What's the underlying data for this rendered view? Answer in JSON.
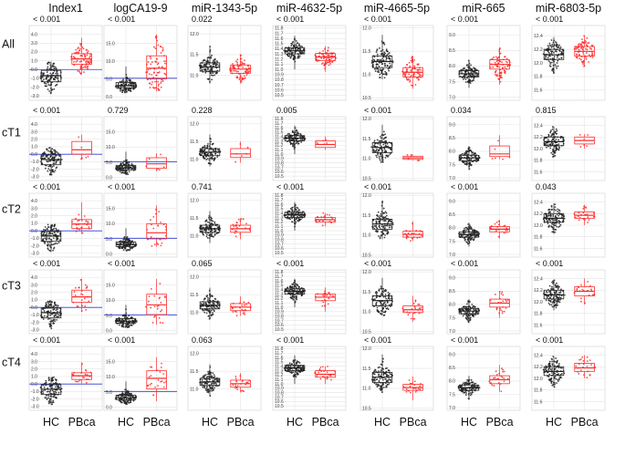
{
  "figure": {
    "columns": [
      "Index1",
      "logCA19-9",
      "miR-1343-5p",
      "miR-4632-5p",
      "miR-4665-5p",
      "miR-665",
      "miR-6803-5p"
    ],
    "rows": [
      "All",
      "cT1",
      "cT2",
      "cT3",
      "cT4"
    ],
    "groups": [
      "HC",
      "PBca"
    ]
  },
  "chart_data": {
    "type": "box-dot-grid",
    "groups": [
      "HC",
      "PBca"
    ],
    "colors": {
      "HC": "#222222",
      "PBca": "#ff2a2a",
      "cutoff": "#2f3bd6",
      "grid": "#e4e4e4"
    },
    "panels": [
      {
        "marker": "Index1",
        "ylim": [
          -3.5,
          5.0
        ],
        "ticks": [
          "-3.0",
          "-2.0",
          "-1.0",
          "0.0",
          "1.0",
          "2.0",
          "3.0",
          "4.0"
        ],
        "tick_values": [
          -3,
          -2,
          -1,
          0,
          1,
          2,
          3,
          4
        ],
        "cutoff": 0.0,
        "p_values": [
          "< 0.001",
          "< 0.001",
          "< 0.001",
          "< 0.001",
          "< 0.001"
        ],
        "HC_box": [
          -2.8,
          -1.4,
          -0.7,
          -0.1,
          0.9
        ],
        "PBca_box": {
          "All": [
            -0.5,
            0.6,
            1.2,
            1.8,
            3.6
          ],
          "cT1": [
            -0.7,
            0.0,
            0.6,
            1.7,
            2.6
          ],
          "cT2": [
            -0.4,
            0.3,
            0.9,
            1.5,
            3.8
          ],
          "cT3": [
            -0.6,
            0.7,
            1.4,
            2.3,
            3.8
          ],
          "cT4": [
            0.1,
            0.6,
            1.1,
            1.5,
            2.9
          ]
        }
      },
      {
        "marker": "logCA19-9",
        "ylim": [
          -1.0,
          20.0
        ],
        "ticks": [
          "0.0",
          "5.0",
          "10.0",
          "15.0"
        ],
        "tick_values": [
          0,
          5,
          10,
          15
        ],
        "cutoff": 5.2,
        "p_values": [
          "< 0.001",
          "0.729",
          "< 0.001",
          "< 0.001",
          "< 0.001"
        ],
        "HC_box": [
          1.0,
          2.5,
          3.1,
          4.0,
          8.5
        ],
        "PBca_box": {
          "All": [
            1.5,
            5.0,
            8.0,
            11.5,
            17.5
          ],
          "cT1": [
            2.0,
            3.0,
            4.5,
            6.5,
            8.0
          ],
          "cT2": [
            2.5,
            5.0,
            7.0,
            10.0,
            16.0
          ],
          "cT3": [
            2.0,
            5.3,
            8.5,
            12.0,
            17.0
          ],
          "cT4": [
            2.0,
            6.0,
            9.5,
            12.0,
            16.5
          ]
        }
      },
      {
        "marker": "miR-1343-5p",
        "ylim": [
          10.4,
          12.2
        ],
        "ticks": [
          "11.0",
          "11.5",
          "12.0"
        ],
        "tick_values": [
          11.0,
          11.5,
          12.0
        ],
        "p_values": [
          "0.022",
          "0.228",
          "0.741",
          "0.065",
          "0.063"
        ],
        "HC_box": [
          10.8,
          11.1,
          11.2,
          11.3,
          11.7
        ],
        "PBca_box": {
          "All": [
            10.8,
            11.05,
            11.15,
            11.25,
            11.5
          ],
          "cT1": [
            10.9,
            11.05,
            11.15,
            11.3,
            11.5
          ],
          "cT2": [
            10.9,
            11.1,
            11.2,
            11.3,
            11.5
          ],
          "cT3": [
            10.9,
            11.05,
            11.15,
            11.25,
            11.45
          ],
          "cT4": [
            10.9,
            11.05,
            11.15,
            11.25,
            11.45
          ]
        }
      },
      {
        "marker": "miR-4632-5p",
        "ylim": [
          10.4,
          11.85
        ],
        "ticks": [
          "10.5",
          "10.6",
          "10.7",
          "10.8",
          "10.9",
          "11.0",
          "11.1",
          "11.2",
          "11.3",
          "11.4",
          "11.5",
          "11.6",
          "11.7",
          "11.8"
        ],
        "tick_values": [
          10.5,
          10.6,
          10.7,
          10.8,
          10.9,
          11.0,
          11.1,
          11.2,
          11.3,
          11.4,
          11.5,
          11.6,
          11.7,
          11.8
        ],
        "p_values": [
          "< 0.001",
          "0.005",
          "< 0.001",
          "< 0.001",
          "< 0.001"
        ],
        "HC_box": [
          11.0,
          11.3,
          11.36,
          11.42,
          11.65
        ],
        "PBca_box": {
          "All": [
            10.95,
            11.17,
            11.24,
            11.31,
            11.45
          ],
          "cT1": [
            11.1,
            11.15,
            11.22,
            11.3,
            11.4
          ],
          "cT2": [
            11.1,
            11.2,
            11.25,
            11.3,
            11.4
          ],
          "cT3": [
            10.9,
            11.15,
            11.23,
            11.3,
            11.45
          ],
          "cT4": [
            11.0,
            11.15,
            11.22,
            11.3,
            11.4
          ]
        }
      },
      {
        "marker": "miR-4665-5p",
        "ylim": [
          10.45,
          12.05
        ],
        "ticks": [
          "10.5",
          "11.0",
          "11.5",
          "12.0"
        ],
        "tick_values": [
          10.5,
          11.0,
          11.5,
          12.0
        ],
        "p_values": [
          "< 0.001",
          "< 0.001",
          "< 0.001",
          "< 0.001",
          "< 0.001"
        ],
        "HC_box": [
          10.9,
          11.15,
          11.28,
          11.4,
          11.85
        ],
        "PBca_box": {
          "All": [
            10.7,
            10.95,
            11.05,
            11.15,
            11.4
          ],
          "cT1": [
            10.95,
            10.98,
            11.02,
            11.06,
            11.1
          ],
          "cT2": [
            10.85,
            10.95,
            11.02,
            11.1,
            11.35
          ],
          "cT3": [
            10.75,
            10.98,
            11.05,
            11.15,
            11.4
          ],
          "cT4": [
            10.7,
            10.95,
            11.02,
            11.1,
            11.3
          ]
        }
      },
      {
        "marker": "miR-665",
        "ylim": [
          6.9,
          9.3
        ],
        "ticks": [
          "7.0",
          "7.5",
          "8.0",
          "8.5",
          "9.0"
        ],
        "tick_values": [
          7.0,
          7.5,
          8.0,
          8.5,
          9.0
        ],
        "p_values": [
          "< 0.001",
          "0.034",
          "< 0.001",
          "< 0.001",
          "< 0.001"
        ],
        "HC_box": [
          7.3,
          7.65,
          7.75,
          7.85,
          8.2
        ],
        "PBca_box": {
          "All": [
            7.4,
            7.9,
            8.05,
            8.2,
            8.6
          ],
          "cT1": [
            7.7,
            7.8,
            7.9,
            8.2,
            8.6
          ],
          "cT2": [
            7.6,
            7.85,
            7.95,
            8.05,
            8.3
          ],
          "cT3": [
            7.5,
            7.9,
            8.05,
            8.2,
            8.5
          ],
          "cT4": [
            7.6,
            7.9,
            8.05,
            8.2,
            8.6
          ]
        }
      },
      {
        "marker": "miR-6803-5p",
        "ylim": [
          11.45,
          12.55
        ],
        "ticks": [
          "11.6",
          "11.8",
          "12.0",
          "12.2",
          "12.4"
        ],
        "tick_values": [
          11.6,
          11.8,
          12.0,
          12.2,
          12.4
        ],
        "p_values": [
          "< 0.001",
          "0.815",
          "0.043",
          "< 0.001",
          "< 0.001"
        ],
        "HC_box": [
          11.85,
          12.05,
          12.12,
          12.2,
          12.38
        ],
        "PBca_box": {
          "All": [
            11.95,
            12.1,
            12.17,
            12.24,
            12.4
          ],
          "cT1": [
            12.0,
            12.08,
            12.14,
            12.2,
            12.25
          ],
          "cT2": [
            12.0,
            12.12,
            12.17,
            12.23,
            12.35
          ],
          "cT3": [
            11.95,
            12.1,
            12.18,
            12.26,
            12.4
          ],
          "cT4": [
            12.0,
            12.12,
            12.18,
            12.26,
            12.4
          ]
        }
      }
    ]
  }
}
